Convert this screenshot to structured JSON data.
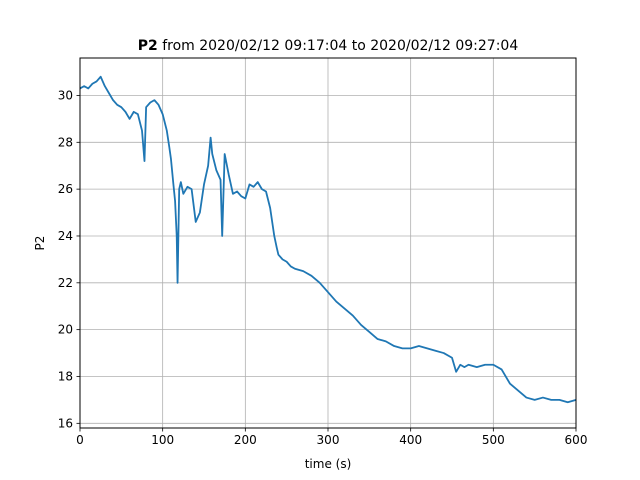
{
  "chart_data": {
    "type": "line",
    "title_bold": "P2",
    "title_rest": " from 2020/02/12 09:17:04 to 2020/02/12 09:27:04",
    "xlabel": "time (s)",
    "ylabel": "P2",
    "xlim": [
      0,
      600
    ],
    "ylim": [
      15.8,
      31.6
    ],
    "xticks": [
      0,
      100,
      200,
      300,
      400,
      500,
      600
    ],
    "yticks": [
      16,
      18,
      20,
      22,
      24,
      26,
      28,
      30
    ],
    "grid": true,
    "line_color": "#1f77b4",
    "series": [
      {
        "x": [
          0,
          5,
          10,
          15,
          20,
          25,
          30,
          35,
          40,
          45,
          50,
          55,
          60,
          65,
          70,
          75,
          78,
          80,
          85,
          90,
          95,
          100,
          105,
          108,
          110,
          113,
          115,
          117,
          118,
          120,
          122,
          125,
          130,
          135,
          140,
          145,
          150,
          155,
          158,
          160,
          165,
          170,
          172,
          175,
          180,
          185,
          190,
          195,
          200,
          205,
          210,
          215,
          220,
          225,
          230,
          235,
          238,
          240,
          245,
          250,
          255,
          260,
          270,
          280,
          290,
          300,
          310,
          320,
          330,
          340,
          350,
          360,
          370,
          380,
          390,
          400,
          410,
          420,
          430,
          440,
          450,
          455,
          460,
          465,
          470,
          480,
          490,
          500,
          510,
          520,
          530,
          540,
          550,
          560,
          570,
          580,
          590,
          600
        ],
        "y": [
          30.3,
          30.4,
          30.3,
          30.5,
          30.6,
          30.8,
          30.4,
          30.1,
          29.8,
          29.6,
          29.5,
          29.3,
          29.0,
          29.3,
          29.2,
          28.5,
          27.2,
          29.5,
          29.7,
          29.8,
          29.6,
          29.2,
          28.5,
          27.8,
          27.3,
          26.2,
          25.5,
          24.0,
          22.0,
          26.0,
          26.3,
          25.8,
          26.1,
          26.0,
          24.6,
          25.0,
          26.2,
          27.0,
          28.2,
          27.5,
          26.8,
          26.4,
          24.0,
          27.5,
          26.6,
          25.8,
          25.9,
          25.7,
          25.6,
          26.2,
          26.1,
          26.3,
          26.0,
          25.9,
          25.2,
          24.0,
          23.5,
          23.2,
          23.0,
          22.9,
          22.7,
          22.6,
          22.5,
          22.3,
          22.0,
          21.6,
          21.2,
          20.9,
          20.6,
          20.2,
          19.9,
          19.6,
          19.5,
          19.3,
          19.2,
          19.2,
          19.3,
          19.2,
          19.1,
          19.0,
          18.8,
          18.2,
          18.5,
          18.4,
          18.5,
          18.4,
          18.5,
          18.5,
          18.3,
          17.7,
          17.4,
          17.1,
          17.0,
          17.1,
          17.0,
          17.0,
          16.9,
          17.0
        ]
      }
    ]
  }
}
